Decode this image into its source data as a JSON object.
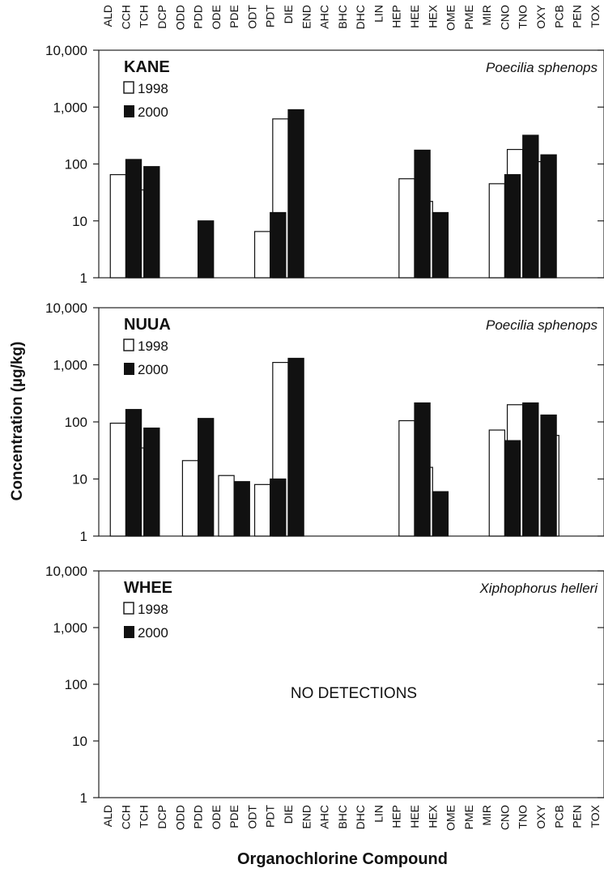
{
  "figure": {
    "ylabel": "Concentration (µg/kg)",
    "xlabel": "Organochlorine Compound",
    "yticks": [
      "1",
      "10",
      "100",
      "1,000",
      "10,000"
    ]
  },
  "compounds": [
    "ALD",
    "CCH",
    "TCH",
    "DCP",
    "ODD",
    "PDD",
    "ODE",
    "PDE",
    "ODT",
    "PDT",
    "DIE",
    "END",
    "AHC",
    "BHC",
    "DHC",
    "LIN",
    "HEP",
    "HEE",
    "HEX",
    "OME",
    "PME",
    "MIR",
    "CNO",
    "TNO",
    "OXY",
    "PCB",
    "PEN",
    "TOX"
  ],
  "legend": {
    "open": "1998",
    "filled": "2000"
  },
  "colors": {
    "y1998": "#ffffff",
    "y2000": "#111111",
    "axis": "#222222"
  },
  "chart_data": [
    {
      "type": "bar",
      "title": "KANE",
      "subtitle": "Poecilia sphenops",
      "scale": "log",
      "ylim": [
        1,
        10000
      ],
      "series": [
        {
          "name": "1998",
          "values": {
            "CCH": 65,
            "TCH": 35,
            "PDT": 6.5,
            "DIE": 620,
            "HEE": 55,
            "HEX": 22,
            "CNO": 45,
            "TNO": 180,
            "OXY": 110
          }
        },
        {
          "name": "2000",
          "values": {
            "CCH": 120,
            "TCH": 90,
            "PDD": 10,
            "PDT": 14,
            "DIE": 900,
            "HEE": 175,
            "HEX": 14,
            "CNO": 65,
            "TNO": 320,
            "OXY": 145
          }
        }
      ]
    },
    {
      "type": "bar",
      "title": "NUUA",
      "subtitle": "Poecilia sphenops",
      "scale": "log",
      "ylim": [
        1,
        10000
      ],
      "series": [
        {
          "name": "1998",
          "values": {
            "CCH": 95,
            "TCH": 35,
            "PDD": 21,
            "PDE": 11.5,
            "PDT": 8,
            "DIE": 1100,
            "HEE": 105,
            "HEX": 16,
            "CNO": 72,
            "TNO": 200,
            "PCB": 58
          }
        },
        {
          "name": "2000",
          "values": {
            "CCH": 165,
            "TCH": 78,
            "PDD": 115,
            "PDE": 9,
            "PDT": 10,
            "DIE": 1300,
            "HEE": 215,
            "HEX": 6,
            "CNO": 47,
            "TNO": 215,
            "OXY": 132
          }
        }
      ]
    },
    {
      "type": "bar",
      "title": "WHEE",
      "subtitle": "Xiphophorus helleri",
      "scale": "log",
      "ylim": [
        1,
        10000
      ],
      "annotation": "NO DETECTIONS",
      "series": [
        {
          "name": "1998",
          "values": {}
        },
        {
          "name": "2000",
          "values": {}
        }
      ]
    }
  ]
}
